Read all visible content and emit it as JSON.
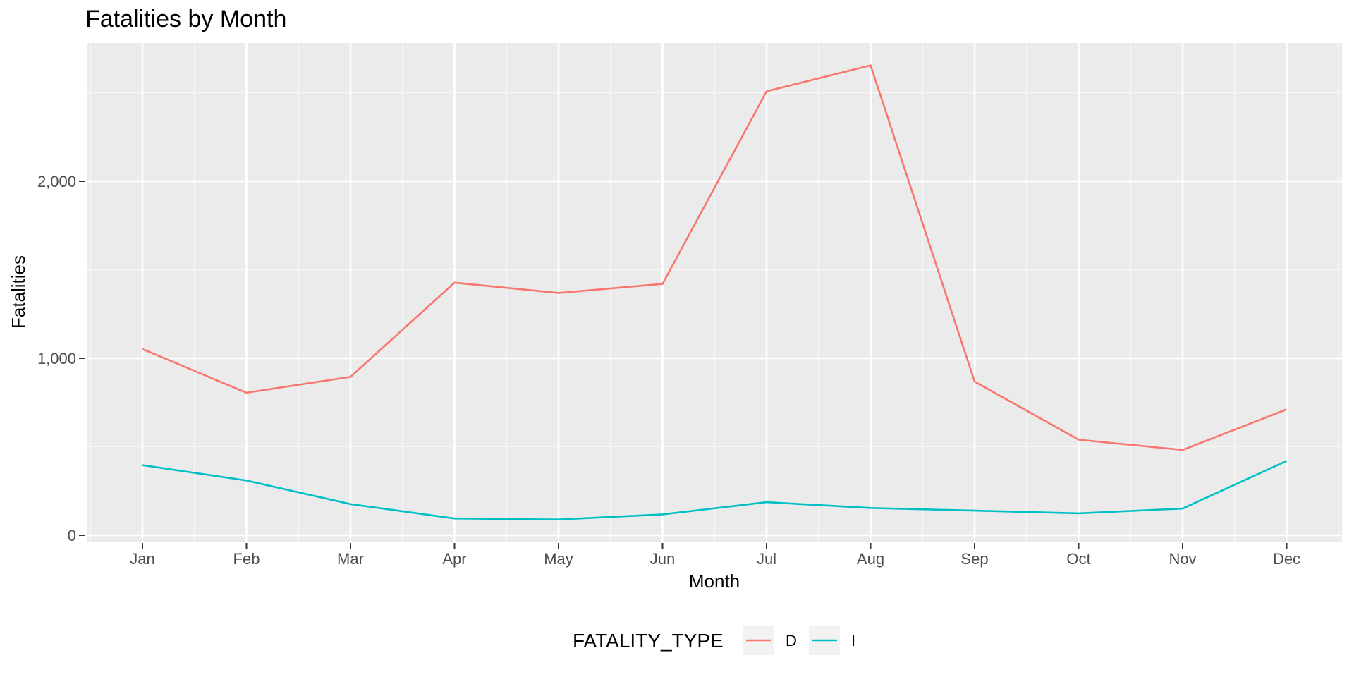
{
  "chart_data": {
    "type": "line",
    "title": "Fatalities by Month",
    "xlabel": "Month",
    "ylabel": "Fatalities",
    "categories": [
      "Jan",
      "Feb",
      "Mar",
      "Apr",
      "May",
      "Jun",
      "Jul",
      "Aug",
      "Sep",
      "Oct",
      "Nov",
      "Dec"
    ],
    "ylim": [
      0,
      2750
    ],
    "yticks": [
      0,
      1000,
      2000
    ],
    "ytick_labels": [
      "0",
      "1,000",
      "2,000"
    ],
    "grid": true,
    "legend": {
      "title": "FATALITY_TYPE",
      "placement": "bottom"
    },
    "series": [
      {
        "name": "D",
        "color": "#F8766D",
        "values": [
          1052,
          805,
          895,
          1427,
          1369,
          1420,
          2508,
          2655,
          868,
          540,
          482,
          711
        ]
      },
      {
        "name": "I",
        "color": "#00BFC4",
        "values": [
          396,
          309,
          176,
          95,
          89,
          118,
          187,
          154,
          139,
          124,
          151,
          420
        ]
      }
    ]
  }
}
